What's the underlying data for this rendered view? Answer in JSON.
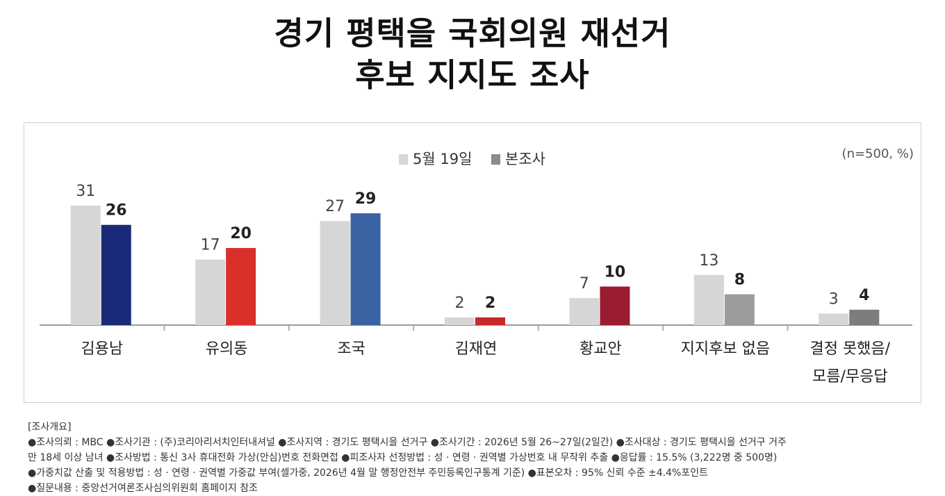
{
  "title_line1": "경기 평택을 국회의원 재선거",
  "title_line2": "후보 지지도 조사",
  "note_sample": "(n=500, %)",
  "colors": {
    "prev": "#d6d6d6",
    "axis": "#9a9a9a",
    "current": [
      "#1b2a78",
      "#d9302c",
      "#3b63a3",
      "#c8282a",
      "#9b1b30",
      "#9c9c9c",
      "#7d7d7d"
    ]
  },
  "chart_data": {
    "type": "bar",
    "categories": [
      "김용남",
      "유의동",
      "조국",
      "김재연",
      "황교안",
      "지지후보 없음",
      "결정 못했음/\n모름/무응답"
    ],
    "series": [
      {
        "name": "5월 19일",
        "values": [
          31,
          17,
          27,
          2,
          7,
          13,
          3
        ]
      },
      {
        "name": "본조사",
        "values": [
          26,
          20,
          29,
          2,
          10,
          8,
          4
        ]
      }
    ],
    "legend_position": "top-center",
    "grid": false,
    "ylim": [
      0,
      32
    ]
  },
  "survey_notes": {
    "heading": "[조사개요]",
    "lines": [
      "●조사의뢰 : MBC ●조사기관 : (주)코리아리서치인터내셔널 ●조사지역 : 경기도 평택시을 선거구 ●조사기간 : 2026년 5월 26~27일(2일간) ●조사대상 : 경기도 평택시을 선거구 거주",
      "만 18세 이상 남녀 ●조사방법 : 통신 3사 휴대전화 가상(안심)번호 전화면접 ●피조사자 선정방법 : 성 · 연령 · 권역별 가상번호 내 무작위 추출 ●응답률 : 15.5% (3,222명 중 500명)",
      "●가중치값 산출 및 적용방법 : 성 · 연령 · 권역별 가중값 부여(셀가중, 2026년 4월 말 행정안전부 주민등록인구통계 기준) ●표본오차 : 95% 신뢰 수준 ±4.4%포인트",
      "●질문내용 : 중앙선거여론조사심의위원회 홈페이지 참조"
    ]
  }
}
